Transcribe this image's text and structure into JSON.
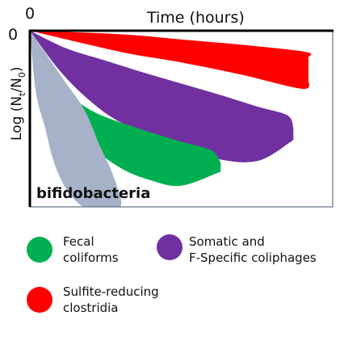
{
  "chart_data": {
    "type": "area",
    "title": "",
    "xlabel": "Time (hours)",
    "ylabel": "Log (N_t/N_0)",
    "x_origin_label": "0",
    "y_origin_label": "0",
    "annotation": "bifidobacteria",
    "xlim": [
      0,
      1
    ],
    "ylim": [
      -1,
      0
    ],
    "grid": false,
    "legend_position": "bottom",
    "series": [
      {
        "name": "Sulfite-reducing clostridia",
        "color": "#ff0000",
        "upper": [
          [
            0.0,
            0.0
          ],
          [
            0.3,
            -0.02
          ],
          [
            0.5,
            -0.05
          ],
          [
            0.7,
            -0.08
          ],
          [
            0.91,
            -0.12
          ],
          [
            0.92,
            -0.15
          ]
        ],
        "lower": [
          [
            0.0,
            0.0
          ],
          [
            0.3,
            -0.12
          ],
          [
            0.5,
            -0.18
          ],
          [
            0.7,
            -0.25
          ],
          [
            0.9,
            -0.33
          ],
          [
            0.92,
            -0.28
          ]
        ]
      },
      {
        "name": "Somatic and F-Specific coliphages",
        "color": "#7030a0",
        "upper": [
          [
            0.0,
            0.0
          ],
          [
            0.12,
            -0.1
          ],
          [
            0.25,
            -0.17
          ],
          [
            0.4,
            -0.25
          ],
          [
            0.6,
            -0.35
          ],
          [
            0.75,
            -0.43
          ],
          [
            0.85,
            -0.48
          ],
          [
            0.87,
            -0.55
          ]
        ],
        "lower": [
          [
            0.0,
            0.0
          ],
          [
            0.1,
            -0.23
          ],
          [
            0.2,
            -0.4
          ],
          [
            0.3,
            -0.52
          ],
          [
            0.45,
            -0.62
          ],
          [
            0.6,
            -0.72
          ],
          [
            0.75,
            -0.74
          ],
          [
            0.87,
            -0.62
          ]
        ]
      },
      {
        "name": "Fecal coliforms",
        "color": "#00b050",
        "upper": [
          [
            0.0,
            0.0
          ],
          [
            0.1,
            -0.3
          ],
          [
            0.2,
            -0.45
          ],
          [
            0.35,
            -0.55
          ],
          [
            0.5,
            -0.63
          ],
          [
            0.6,
            -0.68
          ],
          [
            0.63,
            -0.75
          ]
        ],
        "lower": [
          [
            0.0,
            0.0
          ],
          [
            0.1,
            -0.45
          ],
          [
            0.2,
            -0.65
          ],
          [
            0.3,
            -0.78
          ],
          [
            0.4,
            -0.85
          ],
          [
            0.5,
            -0.88
          ],
          [
            0.63,
            -0.8
          ]
        ]
      },
      {
        "name": "",
        "color": "#a6b2c8",
        "upper": [
          [
            0.0,
            0.0
          ],
          [
            0.1,
            -0.25
          ],
          [
            0.18,
            -0.45
          ],
          [
            0.23,
            -0.65
          ],
          [
            0.27,
            -0.8
          ],
          [
            0.3,
            -0.95
          ],
          [
            0.3,
            -1.0
          ]
        ],
        "lower": [
          [
            0.0,
            0.0
          ],
          [
            0.02,
            -0.35
          ],
          [
            0.05,
            -0.55
          ],
          [
            0.08,
            -0.75
          ],
          [
            0.12,
            -0.9
          ],
          [
            0.16,
            -0.98
          ],
          [
            0.18,
            -1.0
          ]
        ]
      }
    ],
    "legend": [
      {
        "label_lines": [
          "Fecal",
          "coliforms"
        ],
        "color": "#00b050"
      },
      {
        "label_lines": [
          "Somatic and",
          "F-Specific coliphages"
        ],
        "color": "#7030a0"
      },
      {
        "label_lines": [
          "Sulfite-reducing",
          "clostridia"
        ],
        "color": "#ff0000"
      }
    ]
  }
}
